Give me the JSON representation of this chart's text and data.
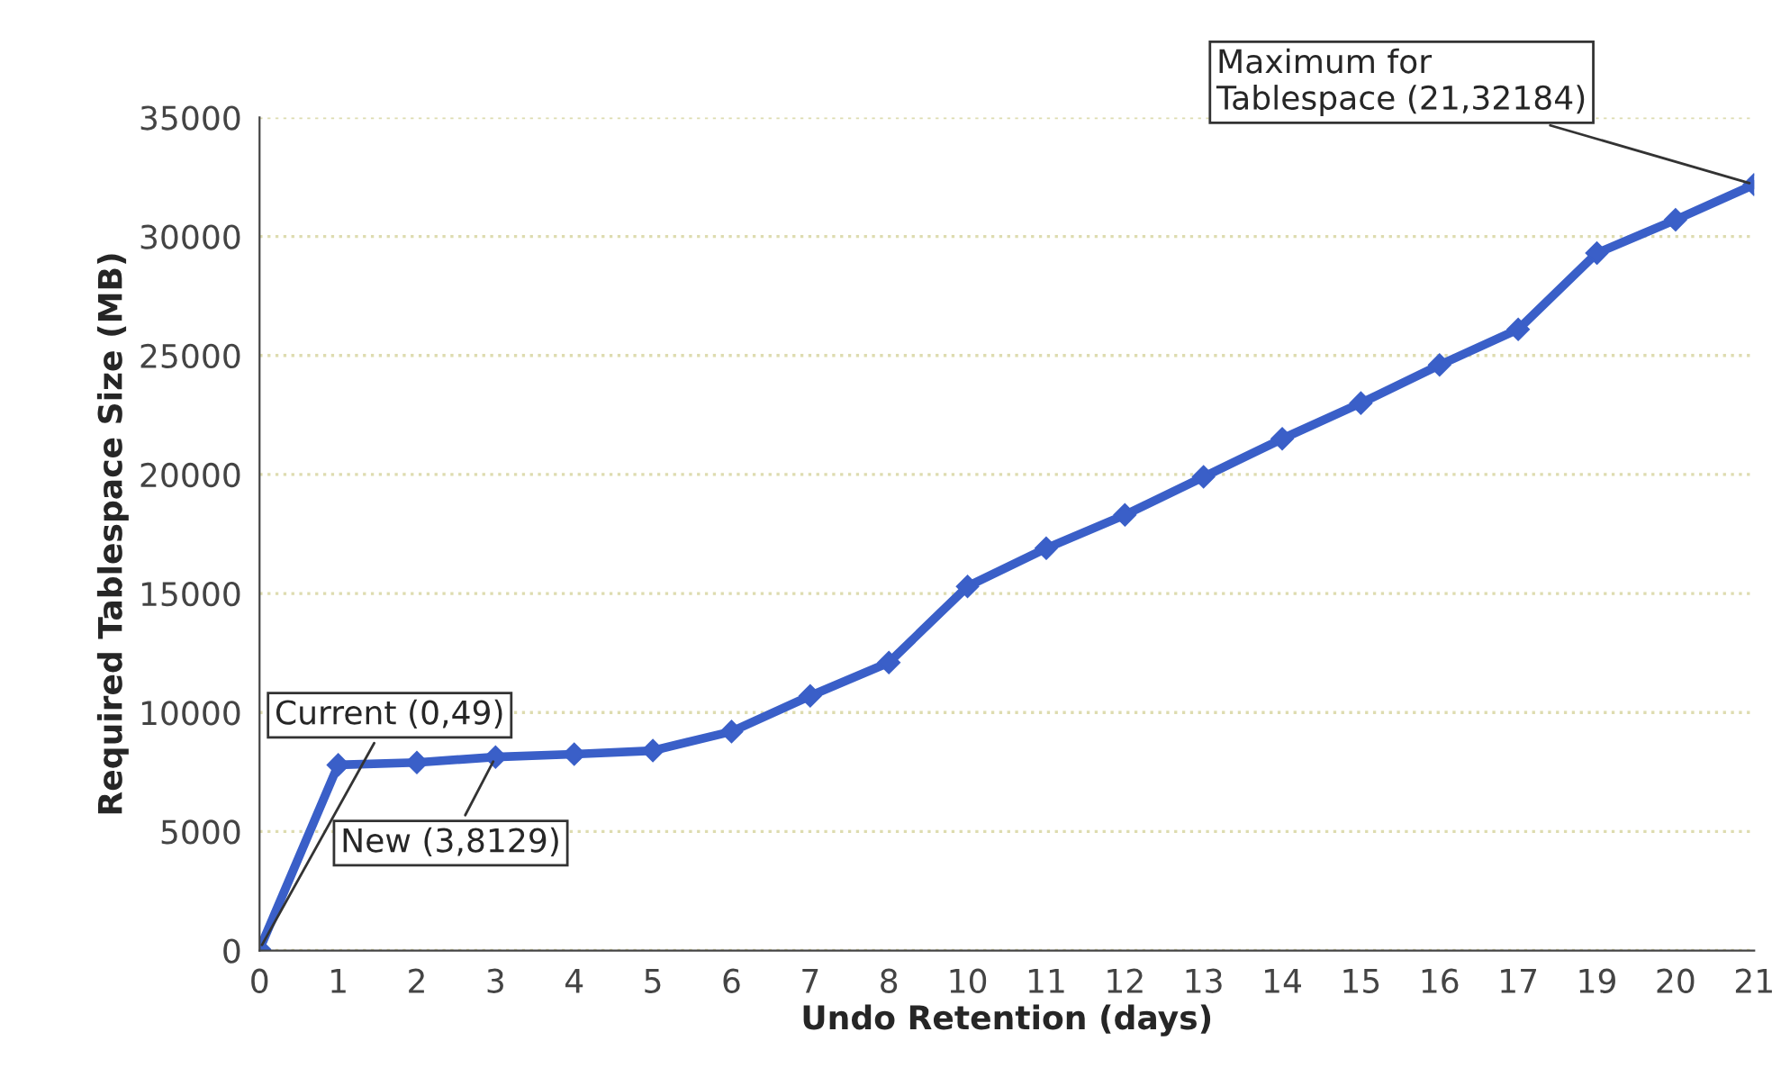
{
  "chart_data": {
    "type": "line",
    "xlabel": "Undo Retention (days)",
    "ylabel": "Required Tablespace Size (MB)",
    "categories": [
      "0",
      "1",
      "2",
      "3",
      "4",
      "5",
      "6",
      "7",
      "8",
      "10",
      "11",
      "12",
      "13",
      "14",
      "15",
      "16",
      "17",
      "19",
      "20",
      "21"
    ],
    "series": [
      {
        "color": "#3a5fc8",
        "values": [
          49,
          7800,
          7900,
          8129,
          8250,
          8400,
          9200,
          10700,
          12100,
          15300,
          16900,
          18300,
          19900,
          21500,
          23000,
          24600,
          26100,
          29300,
          30700,
          32184
        ]
      }
    ],
    "ylim": [
      0,
      35000
    ],
    "yticks": [
      0,
      5000,
      10000,
      15000,
      20000,
      25000,
      30000,
      35000
    ],
    "grid": "y",
    "marker": "diamond",
    "line_style": "solid",
    "legend": false,
    "annotations": [
      {
        "text": "Current (0,49)",
        "x": "0",
        "y": 49
      },
      {
        "text": "New (3,8129)",
        "x": "3",
        "y": 8129
      },
      {
        "text": "Maximum for\nTablespace (21,32184)",
        "x": "21",
        "y": 32184
      }
    ]
  }
}
